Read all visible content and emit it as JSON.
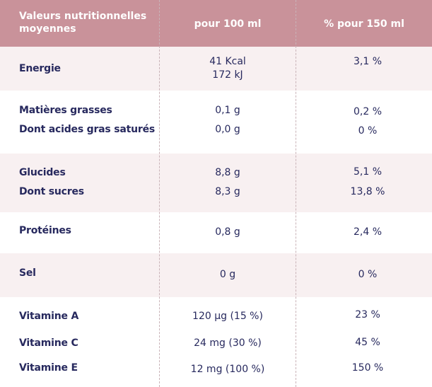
{
  "header": {
    "col1": "Valeurs nutritionnelles moyennes",
    "col2": "pour 100 ml",
    "col3": "% pour 150 ml"
  },
  "rows": [
    {
      "label": "Energie",
      "v100": "41 Kcal",
      "v100b": "172 kJ",
      "v150": "3,1 %"
    },
    {
      "label": "Matières grasses",
      "v100": "0,1 g",
      "v150": "0,2 %"
    },
    {
      "label": "Dont acides gras saturés",
      "v100": "0,0 g",
      "v150": "0 %"
    },
    {
      "label": "Glucides",
      "v100": "8,8 g",
      "v150": "5,1 %"
    },
    {
      "label": "Dont sucres",
      "v100": "8,3 g",
      "v150": "13,8 %"
    },
    {
      "label": "Protéines",
      "v100": "0,8 g",
      "v150": "2,4 %"
    },
    {
      "label": "Sel",
      "v100": "0 g",
      "v150": "0 %"
    },
    {
      "label": "Vitamine A",
      "v100": "120 µg (15 %)",
      "v150": "23 %"
    },
    {
      "label": "Vitamine C",
      "v100": "24 mg (30 %)",
      "v150": "45 %"
    },
    {
      "label": "Vitamine E",
      "v100": "12 mg (100 %)",
      "v150": "150 %"
    }
  ]
}
